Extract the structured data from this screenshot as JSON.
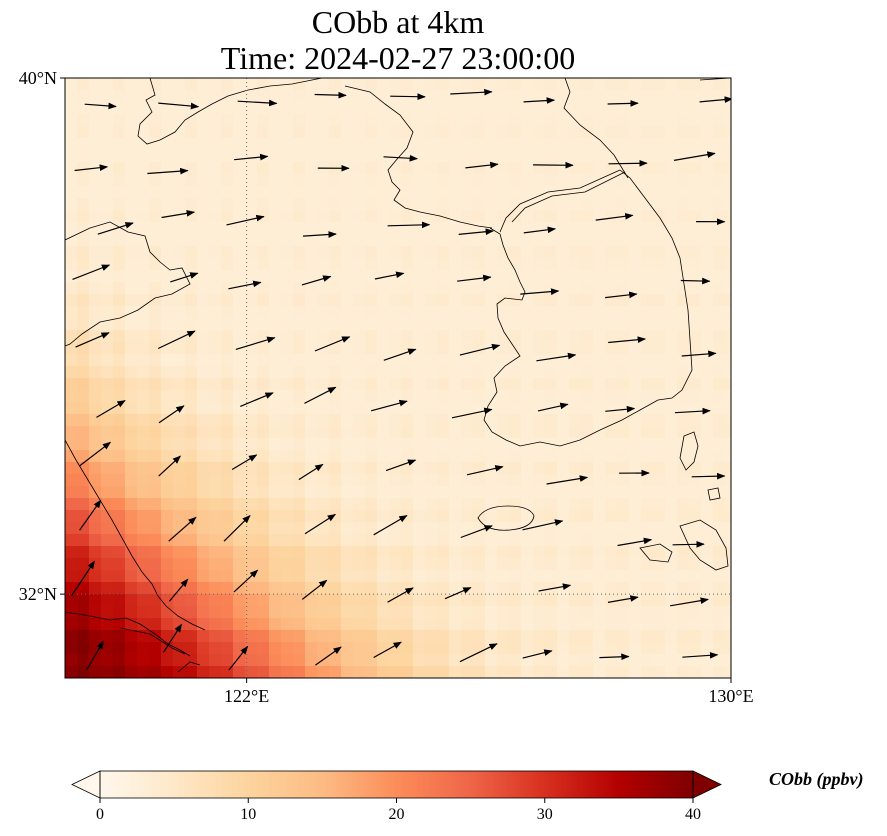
{
  "title": {
    "line1": "CObb at 4km",
    "line2": "Time: 2024-02-27 23:00:00"
  },
  "map": {
    "lon_range": [
      119,
      130
    ],
    "lat_range": [
      30.7,
      40
    ],
    "lat_ticks": [
      {
        "value": 40,
        "label": "40°N"
      },
      {
        "value": 32,
        "label": "32°N"
      }
    ],
    "lon_ticks": [
      {
        "value": 122,
        "label": "122°E"
      },
      {
        "value": 130,
        "label": "130°E"
      }
    ],
    "gridlines": {
      "lons": [
        122
      ],
      "lats": [
        32
      ],
      "style": "dotted"
    },
    "field": "CObb",
    "high_values_location": "southwest corner (Yangtze River Delta)",
    "field_max_visible": 36,
    "wind_vectors": "shown, westerly to southwesterly flow"
  },
  "colorbar": {
    "label": "CObb (ppbv)",
    "min": 0,
    "max": 40,
    "ticks": [
      "0",
      "10",
      "20",
      "30",
      "40"
    ],
    "extend": "both",
    "colormap": "OrRd",
    "colors": [
      "#fff7ec",
      "#fee8c8",
      "#fdd49e",
      "#fdbb84",
      "#fc8d59",
      "#ef6548",
      "#d7301f",
      "#b30000",
      "#7f0000"
    ]
  }
}
